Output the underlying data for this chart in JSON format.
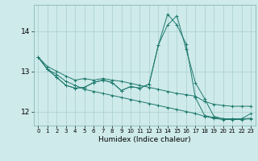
{
  "xlabel": "Humidex (Indice chaleur)",
  "bg_color": "#ceeaea",
  "grid_color": "#aacece",
  "line_color": "#1e7a6e",
  "xlim": [
    -0.5,
    23.5
  ],
  "ylim": [
    11.65,
    14.65
  ],
  "yticks": [
    12,
    13,
    14
  ],
  "xticks": [
    0,
    1,
    2,
    3,
    4,
    5,
    6,
    7,
    8,
    9,
    10,
    11,
    12,
    13,
    14,
    15,
    16,
    17,
    18,
    19,
    20,
    21,
    22,
    23
  ],
  "series": [
    [
      13.35,
      13.12,
      13.0,
      12.88,
      12.78,
      12.82,
      12.78,
      12.82,
      12.78,
      12.75,
      12.7,
      12.65,
      12.6,
      12.55,
      12.5,
      12.45,
      12.42,
      12.38,
      12.25,
      12.18,
      12.15,
      12.13,
      12.13,
      12.13
    ],
    [
      13.35,
      13.05,
      12.92,
      12.75,
      12.65,
      12.55,
      12.5,
      12.45,
      12.4,
      12.35,
      12.3,
      12.25,
      12.2,
      12.15,
      12.1,
      12.05,
      12.0,
      11.95,
      11.88,
      11.83,
      11.8,
      11.8,
      11.8,
      11.82
    ],
    [
      13.35,
      13.05,
      12.85,
      12.65,
      12.58,
      12.6,
      12.72,
      12.78,
      12.72,
      12.52,
      12.62,
      12.58,
      12.68,
      13.65,
      14.15,
      14.38,
      13.55,
      12.72,
      12.32,
      11.88,
      11.82,
      11.82,
      11.82,
      11.83
    ],
    [
      13.35,
      13.05,
      12.85,
      12.65,
      12.58,
      12.6,
      12.72,
      12.78,
      12.72,
      12.52,
      12.62,
      12.58,
      12.68,
      13.65,
      14.42,
      14.15,
      13.68,
      12.35,
      11.9,
      11.85,
      11.82,
      11.82,
      11.82,
      11.95
    ]
  ]
}
